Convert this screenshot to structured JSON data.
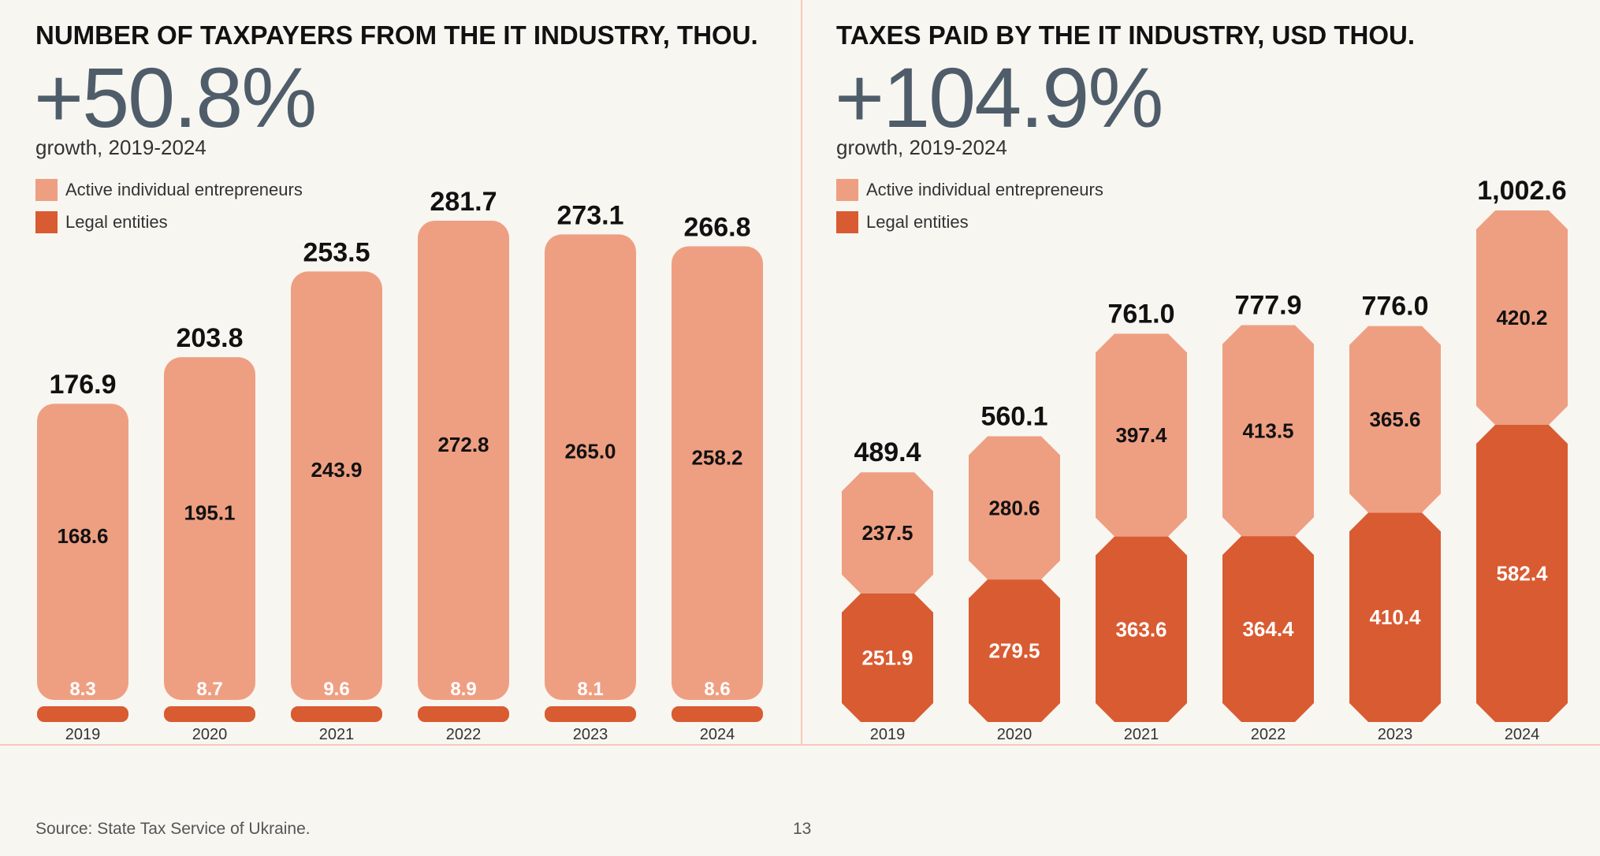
{
  "colors": {
    "individual": "#ee9f82",
    "legal": "#d95b32",
    "background": "#f8f6f1",
    "rule": "#f6c9bb"
  },
  "left_panel": {
    "title": "NUMBER OF TAXPAYERS FROM THE IT INDUSTRY, THOU.",
    "growth": "+50.8%",
    "growth_caption": "growth, 2019-2024",
    "legend": [
      "Active individual entrepreneurs",
      "Legal entities"
    ]
  },
  "right_panel": {
    "title": "TAXES PAID BY THE IT INDUSTRY, USD THOU.",
    "growth": "+104.9%",
    "growth_caption": "growth, 2019-2024",
    "legend": [
      "Active individual entrepreneurs",
      "Legal entities"
    ]
  },
  "chart_data": [
    {
      "type": "bar",
      "stacked": true,
      "categories": [
        "2019",
        "2020",
        "2021",
        "2022",
        "2023",
        "2024"
      ],
      "series": [
        {
          "name": "Legal entities",
          "values": [
            8.3,
            8.7,
            9.6,
            8.9,
            8.1,
            8.6
          ],
          "labels": [
            "8.3",
            "8.7",
            "9.6",
            "8.9",
            "8.1",
            "8.6"
          ]
        },
        {
          "name": "Active individual entrepreneurs",
          "values": [
            168.6,
            195.1,
            243.9,
            272.8,
            265.0,
            258.2
          ],
          "labels": [
            "168.6",
            "195.1",
            "243.9",
            "272.8",
            "265.0",
            "258.2"
          ]
        }
      ],
      "totals": [
        176.9,
        203.8,
        253.5,
        281.7,
        273.1,
        266.8
      ],
      "total_labels": [
        "176.9",
        "203.8",
        "253.5",
        "281.7",
        "273.1",
        "266.8"
      ],
      "ylim": [
        0,
        281.7
      ]
    },
    {
      "type": "bar",
      "stacked": true,
      "categories": [
        "2019",
        "2020",
        "2021",
        "2022",
        "2023",
        "2024"
      ],
      "series": [
        {
          "name": "Legal entities",
          "values": [
            251.9,
            279.5,
            363.6,
            364.4,
            410.4,
            582.4
          ],
          "labels": [
            "251.9",
            "279.5",
            "363.6",
            "364.4",
            "410.4",
            "582.4"
          ]
        },
        {
          "name": "Active individual entrepreneurs",
          "values": [
            237.5,
            280.6,
            397.4,
            413.5,
            365.6,
            420.2
          ],
          "labels": [
            "237.5",
            "280.6",
            "397.4",
            "413.5",
            "365.6",
            "420.2"
          ]
        }
      ],
      "totals": [
        489.4,
        560.1,
        761.0,
        777.9,
        776.0,
        1002.6
      ],
      "total_labels": [
        "489.4",
        "560.1",
        "761.0",
        "777.9",
        "776.0",
        "1,002.6"
      ],
      "ylim": [
        0,
        1002.6
      ]
    }
  ],
  "footer": {
    "source": "Source: State Tax Service of Ukraine.",
    "page_number": "13"
  }
}
